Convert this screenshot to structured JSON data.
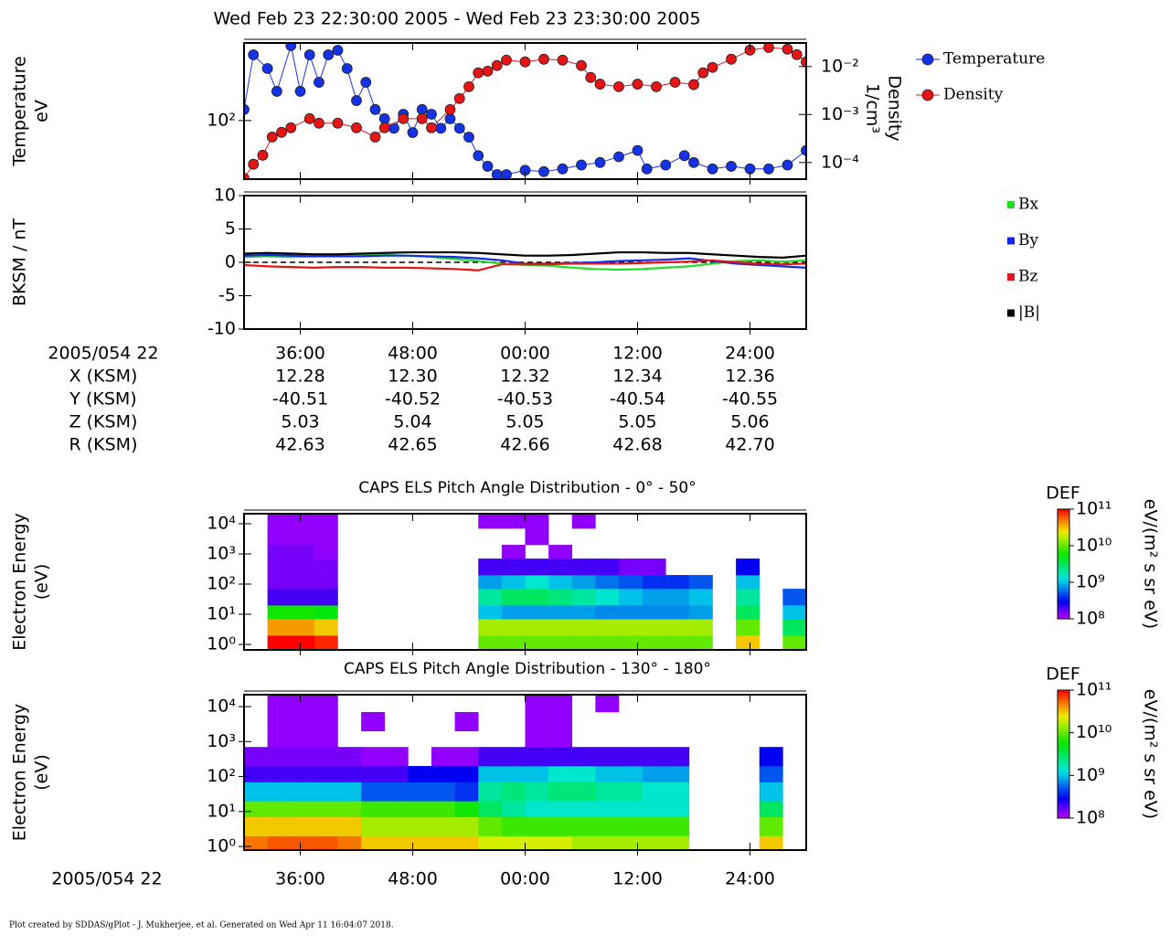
{
  "title": "Wed Feb 23 22:30:00 2005 - Wed Feb 23 23:30:00 2005",
  "chart_data": [
    {
      "type": "line",
      "markers": true,
      "ylabel": [
        "Temperature",
        "eV"
      ],
      "y2label": [
        "Density",
        "1/cm³"
      ],
      "xlim": [
        30,
        90
      ],
      "xticks": [
        36,
        48,
        60,
        72,
        84
      ],
      "ylim": [
        38,
        360
      ],
      "log_y": true,
      "yticks": [
        {
          "value": 100,
          "label": "10²"
        }
      ],
      "y2lim": [
        4.5e-05,
        0.031
      ],
      "log_y2": true,
      "y2ticks": [
        {
          "value": 0.0001,
          "label": "10⁻⁴"
        },
        {
          "value": 0.001,
          "label": "10⁻³"
        },
        {
          "value": 0.01,
          "label": "10⁻²"
        }
      ],
      "legend": "right",
      "series": [
        {
          "name": "Temperature",
          "color": "#1432e6",
          "x": [
            30,
            31,
            32.5,
            33.5,
            35,
            36,
            37,
            38,
            39,
            40,
            41,
            42,
            43,
            44,
            45,
            46,
            47,
            48,
            49,
            50,
            51,
            52,
            53,
            54,
            55,
            56,
            57,
            58,
            60,
            62,
            64,
            66,
            68,
            70,
            72,
            73,
            75,
            77,
            78,
            80,
            82,
            84,
            86,
            88,
            90
          ],
          "values": [
            120,
            296,
            236,
            162,
            344,
            162,
            296,
            188,
            296,
            319,
            236,
            139,
            188,
            120,
            103,
            88,
            111,
            82,
            120,
            111,
            88,
            103,
            88,
            76,
            56,
            47,
            41,
            41,
            44,
            43,
            45,
            48,
            50,
            55,
            61,
            45,
            48,
            56,
            50,
            45,
            47,
            45,
            45,
            48,
            61
          ]
        },
        {
          "name": "Density",
          "color": "#e61414",
          "axis": "y2",
          "x": [
            30,
            31,
            32,
            33,
            34,
            35,
            37,
            38,
            40,
            42,
            44,
            45,
            47,
            49,
            50,
            52,
            53,
            54,
            55,
            56,
            57,
            58,
            60,
            62,
            64,
            66,
            67,
            68,
            70,
            72,
            74,
            76,
            78,
            79,
            80,
            82,
            84,
            86,
            88,
            89,
            90
          ],
          "values": [
            4.7e-05,
            9.2e-05,
            0.000142,
            0.00034,
            0.000425,
            0.00053,
            0.00082,
            0.00066,
            0.00066,
            0.00053,
            0.00034,
            0.00053,
            0.00082,
            0.00082,
            0.00053,
            0.00127,
            0.00215,
            0.0038,
            0.0074,
            0.008,
            0.0105,
            0.0136,
            0.0125,
            0.0142,
            0.0136,
            0.0105,
            0.0059,
            0.0043,
            0.0038,
            0.0043,
            0.0038,
            0.0047,
            0.0042,
            0.0074,
            0.0096,
            0.0142,
            0.022,
            0.025,
            0.023,
            0.0177,
            0.0125
          ]
        }
      ]
    },
    {
      "type": "line",
      "ylabel": [
        "BKSM / nT"
      ],
      "xlim": [
        30,
        90
      ],
      "xticks": [
        {
          "value": 36,
          "label": "36:00"
        },
        {
          "value": 48,
          "label": "48:00"
        },
        {
          "value": 60,
          "label": "00:00"
        },
        {
          "value": 72,
          "label": "12:00"
        },
        {
          "value": 84,
          "label": "24:00"
        }
      ],
      "ylim": [
        -10,
        10
      ],
      "yticks": [
        -10,
        -5,
        0,
        5,
        10
      ],
      "zero_line": true,
      "legend": "right",
      "x": [
        30,
        32.5,
        35,
        37.5,
        40,
        42.5,
        45,
        47.5,
        50,
        52.5,
        55,
        57.5,
        60,
        62.5,
        65,
        67.5,
        70,
        72.5,
        75,
        77.5,
        80,
        82.5,
        85,
        87.5,
        90
      ],
      "series": [
        {
          "name": "Bx",
          "color": "#22dd22",
          "values": [
            0.8,
            0.9,
            0.8,
            0.9,
            1.0,
            1.0,
            1.1,
            1.0,
            0.8,
            0.5,
            0.2,
            -0.2,
            -0.4,
            -0.5,
            -0.8,
            -1.0,
            -1.1,
            -1.0,
            -0.8,
            -0.6,
            -0.2,
            0.2,
            0.3,
            0.1,
            0.3
          ]
        },
        {
          "name": "By",
          "color": "#1428e6",
          "values": [
            1.0,
            1.1,
            1.0,
            0.9,
            0.9,
            0.9,
            1.0,
            1.0,
            0.9,
            0.8,
            0.6,
            0.3,
            -0.2,
            -0.2,
            -0.1,
            0.0,
            0.2,
            0.3,
            0.4,
            0.6,
            0.2,
            -0.2,
            -0.4,
            -0.6,
            -0.8
          ]
        },
        {
          "name": "Bz",
          "color": "#e61414",
          "values": [
            -0.4,
            -0.6,
            -0.7,
            -0.8,
            -0.7,
            -0.7,
            -0.8,
            -0.8,
            -0.9,
            -1.0,
            -1.2,
            -0.3,
            -0.3,
            -0.3,
            -0.2,
            -0.2,
            -0.2,
            -0.1,
            0.0,
            0.1,
            0.3,
            0.0,
            -0.2,
            -0.3,
            -0.2
          ]
        },
        {
          "name": "|B|",
          "color": "#000000",
          "values": [
            1.3,
            1.4,
            1.3,
            1.2,
            1.2,
            1.3,
            1.4,
            1.5,
            1.5,
            1.5,
            1.4,
            1.2,
            1.0,
            1.0,
            1.1,
            1.3,
            1.5,
            1.5,
            1.4,
            1.4,
            1.2,
            1.0,
            0.8,
            0.7,
            1.0
          ]
        }
      ]
    },
    {
      "type": "heatmap",
      "title": "CAPS ELS Pitch Angle Distribution - 0° - 50°",
      "ylabel": [
        "Electron Energy",
        "(eV)"
      ],
      "xlim": [
        30,
        90
      ],
      "xticks": [
        36,
        48,
        60,
        72,
        84
      ],
      "ylim": [
        0.66,
        21500
      ],
      "log_y": true,
      "yticks": [
        {
          "value": 1,
          "label": "10⁰"
        },
        {
          "value": 10,
          "label": "10¹"
        },
        {
          "value": 100,
          "label": "10²"
        },
        {
          "value": 1000,
          "label": "10³"
        },
        {
          "value": 10000,
          "label": "10⁴"
        }
      ],
      "zlabel": "DEF",
      "colorbar_label": "eV/(m² s sr eV)",
      "zlim": [
        100000000.0,
        100000000000.0
      ],
      "zticks": [
        {
          "value": 100000000.0,
          "label": "10⁸"
        },
        {
          "value": 1000000000.0,
          "label": "10⁹"
        },
        {
          "value": 10000000000.0,
          "label": "10¹⁰"
        },
        {
          "value": 100000000000.0,
          "label": "10¹¹"
        }
      ],
      "x_bins": [
        30,
        32.5,
        35,
        37.5,
        40,
        42.5,
        45,
        47.5,
        50,
        52.5,
        55,
        57.5,
        60,
        62.5,
        65,
        67.5,
        70,
        72.5,
        75,
        77.5,
        80,
        82.5,
        85,
        87.5,
        90
      ],
      "y_bins": [
        0.7,
        2,
        7,
        20,
        70,
        200,
        700,
        2000,
        7000,
        21000
      ],
      "values": [
        null,
        [
          100000000000.0,
          40000000000.0,
          6000000000.0,
          200000000.0,
          150000000.0,
          150000000.0,
          150000000.0,
          130000000.0,
          130000000.0
        ],
        [
          100000000000.0,
          40000000000.0,
          6000000000.0,
          200000000.0,
          150000000.0,
          150000000.0,
          150000000.0,
          130000000.0,
          130000000.0
        ],
        [
          80000000000.0,
          30000000000.0,
          5000000000.0,
          200000000.0,
          150000000.0,
          150000000.0,
          130000000.0,
          130000000.0,
          130000000.0
        ],
        null,
        null,
        null,
        null,
        null,
        null,
        [
          10000000000.0,
          15000000000.0,
          1000000000.0,
          2000000000.0,
          800000000.0,
          200000000.0,
          null,
          null,
          130000000.0
        ],
        [
          10000000000.0,
          15000000000.0,
          800000000.0,
          3000000000.0,
          1000000000.0,
          200000000.0,
          130000000.0,
          null,
          130000000.0
        ],
        [
          10000000000.0,
          15000000000.0,
          800000000.0,
          3000000000.0,
          1500000000.0,
          200000000.0,
          null,
          130000000.0,
          130000000.0
        ],
        [
          10000000000.0,
          15000000000.0,
          800000000.0,
          2500000000.0,
          1000000000.0,
          200000000.0,
          130000000.0,
          null,
          null
        ],
        [
          10000000000.0,
          15000000000.0,
          800000000.0,
          2000000000.0,
          800000000.0,
          200000000.0,
          null,
          null,
          130000000.0
        ],
        [
          10000000000.0,
          15000000000.0,
          700000000.0,
          1500000000.0,
          600000000.0,
          200000000.0,
          null,
          null,
          null
        ],
        [
          10000000000.0,
          15000000000.0,
          700000000.0,
          1000000000.0,
          500000000.0,
          150000000.0,
          null,
          null,
          null
        ],
        [
          10000000000.0,
          15000000000.0,
          700000000.0,
          800000000.0,
          400000000.0,
          150000000.0,
          null,
          null,
          null
        ],
        [
          10000000000.0,
          15000000000.0,
          700000000.0,
          800000000.0,
          400000000.0,
          null,
          null,
          null,
          null
        ],
        [
          10000000000.0,
          15000000000.0,
          800000000.0,
          1000000000.0,
          500000000.0,
          null,
          null,
          null,
          null
        ],
        null,
        [
          30000000000.0,
          10000000000.0,
          3000000000.0,
          2000000000.0,
          1000000000.0,
          300000000.0,
          null,
          null,
          null
        ],
        null,
        [
          10000000000.0,
          3000000000.0,
          1000000000.0,
          500000000.0,
          null,
          null,
          null,
          null,
          null
        ]
      ]
    },
    {
      "type": "heatmap",
      "title": "CAPS ELS Pitch Angle Distribution - 130° - 180°",
      "ylabel": [
        "Electron Energy",
        "(eV)"
      ],
      "xlim": [
        30,
        90
      ],
      "xticks": [
        {
          "value": 36,
          "label": "36:00"
        },
        {
          "value": 48,
          "label": "48:00"
        },
        {
          "value": 60,
          "label": "00:00"
        },
        {
          "value": 72,
          "label": "12:00"
        },
        {
          "value": 84,
          "label": "24:00"
        }
      ],
      "ylim": [
        0.79,
        21900
      ],
      "log_y": true,
      "yticks": [
        {
          "value": 1,
          "label": "10⁰"
        },
        {
          "value": 10,
          "label": "10¹"
        },
        {
          "value": 100,
          "label": "10²"
        },
        {
          "value": 1000,
          "label": "10³"
        },
        {
          "value": 10000,
          "label": "10⁴"
        }
      ],
      "zlabel": "DEF",
      "colorbar_label": "eV/(m² s sr eV)",
      "zlim": [
        100000000.0,
        100000000000.0
      ],
      "zticks": [
        {
          "value": 100000000.0,
          "label": "10⁸"
        },
        {
          "value": 1000000000.0,
          "label": "10⁹"
        },
        {
          "value": 10000000000.0,
          "label": "10¹⁰"
        },
        {
          "value": 100000000000.0,
          "label": "10¹¹"
        }
      ],
      "x_bins": [
        30,
        32.5,
        35,
        37.5,
        40,
        42.5,
        45,
        47.5,
        50,
        52.5,
        55,
        57.5,
        60,
        62.5,
        65,
        67.5,
        70,
        72.5,
        75,
        77.5,
        80,
        82.5,
        85,
        87.5,
        90
      ],
      "y_bins": [
        0.8,
        2,
        7,
        20,
        70,
        200,
        700,
        2000,
        7000,
        21000
      ],
      "values": [
        [
          50000000000.0,
          30000000000.0,
          10000000000.0,
          1000000000.0,
          200000000.0,
          150000000.0,
          null,
          null,
          null
        ],
        [
          60000000000.0,
          30000000000.0,
          10000000000.0,
          1000000000.0,
          200000000.0,
          150000000.0,
          130000000.0,
          130000000.0,
          130000000.0
        ],
        [
          60000000000.0,
          30000000000.0,
          10000000000.0,
          1000000000.0,
          200000000.0,
          150000000.0,
          130000000.0,
          130000000.0,
          130000000.0
        ],
        [
          60000000000.0,
          30000000000.0,
          10000000000.0,
          1000000000.0,
          200000000.0,
          150000000.0,
          130000000.0,
          130000000.0,
          130000000.0
        ],
        [
          50000000000.0,
          30000000000.0,
          10000000000.0,
          1000000000.0,
          200000000.0,
          150000000.0,
          null,
          null,
          null
        ],
        [
          30000000000.0,
          15000000000.0,
          8000000000.0,
          500000000.0,
          200000000.0,
          130000000.0,
          null,
          130000000.0,
          null
        ],
        [
          30000000000.0,
          15000000000.0,
          8000000000.0,
          500000000.0,
          200000000.0,
          130000000.0,
          null,
          null,
          null
        ],
        [
          30000000000.0,
          15000000000.0,
          8000000000.0,
          500000000.0,
          300000000.0,
          null,
          null,
          null,
          null
        ],
        [
          30000000000.0,
          15000000000.0,
          8000000000.0,
          500000000.0,
          300000000.0,
          130000000.0,
          null,
          null,
          null
        ],
        [
          30000000000.0,
          15000000000.0,
          6000000000.0,
          400000000.0,
          300000000.0,
          130000000.0,
          null,
          130000000.0,
          null
        ],
        [
          20000000000.0,
          10000000000.0,
          3000000000.0,
          2000000000.0,
          1000000000.0,
          200000000.0,
          null,
          null,
          null
        ],
        [
          20000000000.0,
          8000000000.0,
          2000000000.0,
          2500000000.0,
          1000000000.0,
          200000000.0,
          null,
          null,
          null
        ],
        [
          20000000000.0,
          8000000000.0,
          1500000000.0,
          2000000000.0,
          1000000000.0,
          200000000.0,
          130000000.0,
          130000000.0,
          130000000.0
        ],
        [
          20000000000.0,
          8000000000.0,
          1500000000.0,
          2500000000.0,
          1500000000.0,
          200000000.0,
          130000000.0,
          130000000.0,
          130000000.0
        ],
        [
          15000000000.0,
          8000000000.0,
          1500000000.0,
          2500000000.0,
          1500000000.0,
          200000000.0,
          null,
          null,
          null
        ],
        [
          15000000000.0,
          8000000000.0,
          1500000000.0,
          2000000000.0,
          1000000000.0,
          200000000.0,
          null,
          null,
          130000000.0
        ],
        [
          15000000000.0,
          8000000000.0,
          1500000000.0,
          2000000000.0,
          1000000000.0,
          200000000.0,
          null,
          null,
          null
        ],
        [
          15000000000.0,
          8000000000.0,
          1500000000.0,
          1500000000.0,
          800000000.0,
          200000000.0,
          null,
          null,
          null
        ],
        [
          15000000000.0,
          8000000000.0,
          1500000000.0,
          1500000000.0,
          800000000.0,
          200000000.0,
          null,
          null,
          null
        ],
        null,
        null,
        null,
        [
          30000000000.0,
          10000000000.0,
          3000000000.0,
          1000000000.0,
          500000000.0,
          300000000.0,
          null,
          null,
          null
        ],
        null
      ]
    }
  ],
  "ephemeris": {
    "time_label": "2005/054 22",
    "rows": [
      {
        "label": "X (KSM)",
        "values": [
          "12.28",
          "12.30",
          "12.32",
          "12.34",
          "12.36"
        ]
      },
      {
        "label": "Y (KSM)",
        "values": [
          "-40.51",
          "-40.52",
          "-40.53",
          "-40.54",
          "-40.55"
        ]
      },
      {
        "label": "Z (KSM)",
        "values": [
          "5.03",
          "5.04",
          "5.05",
          "5.05",
          "5.06"
        ]
      },
      {
        "label": "R (KSM)",
        "values": [
          "42.63",
          "42.65",
          "42.66",
          "42.68",
          "42.70"
        ]
      }
    ]
  },
  "bottom_time_label": "2005/054 22",
  "footer": "Plot created by SDDAS/gPlot - J. Mukherjee, et al.  Generated on Wed Apr 11 16:04:07 2018."
}
